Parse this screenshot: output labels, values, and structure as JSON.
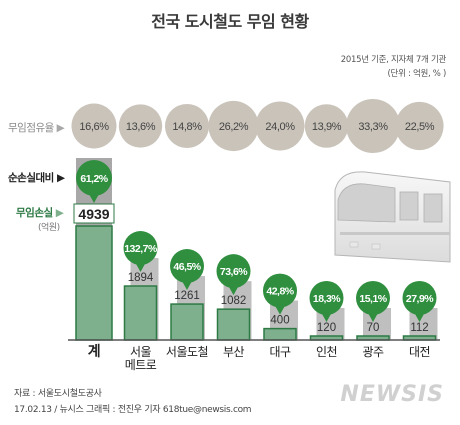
{
  "title": "전국 도시철도 무임 현황",
  "note_line1": "2015년 기준, 지자체 7개 기관",
  "note_line2": "(단위 : 억원, % )",
  "row_labels": {
    "occupancy": "무임점유율",
    "net_loss_ratio": "순손실대비",
    "loss": "무임손실",
    "loss_unit": "(억원)"
  },
  "colors": {
    "occupancy_circle": "#c9c3ba",
    "ratio_badge": "#2f8f3f",
    "bar_fill": "#7fb08e",
    "bar_edge": "#2d7a45",
    "shadow_bar": "#bfbfbf",
    "total_shadow": "#a8a8a8"
  },
  "chart_data": {
    "type": "bar",
    "categories": [
      "계",
      "서울\n메트로",
      "서울도철",
      "부산",
      "대구",
      "인천",
      "광주",
      "대전"
    ],
    "series": [
      {
        "name": "무임손실",
        "values": [
          4939,
          1894,
          1261,
          1082,
          400,
          120,
          70,
          112
        ]
      },
      {
        "name": "순손실대비",
        "values": [
          61.2,
          132.7,
          46.5,
          73.6,
          42.8,
          18.3,
          15.1,
          27.9
        ]
      },
      {
        "name": "무임점유율",
        "values": [
          16.6,
          13.6,
          14.8,
          26.2,
          24.0,
          13.9,
          33.3,
          22.5
        ]
      }
    ],
    "value_labels": [
      "4939",
      "1894",
      "1261",
      "1082",
      "400",
      "120",
      "70",
      "112"
    ],
    "ratio_labels": [
      "61,2%",
      "132,7%",
      "46,5%",
      "73,6%",
      "42,8%",
      "18,3%",
      "15,1%",
      "27,9%"
    ],
    "occupancy_labels": [
      "16,6%",
      "13,6%",
      "14,8%",
      "26,2%",
      "24,0%",
      "13,9%",
      "33,3%",
      "22,5%"
    ]
  },
  "source_line1": "자료 : 서울도시철도공사",
  "source_line2": "17.02.13 / 뉴시스 그래픽 : 전진우 기자 618tue@newsis.com",
  "watermark": "NEWSIS"
}
